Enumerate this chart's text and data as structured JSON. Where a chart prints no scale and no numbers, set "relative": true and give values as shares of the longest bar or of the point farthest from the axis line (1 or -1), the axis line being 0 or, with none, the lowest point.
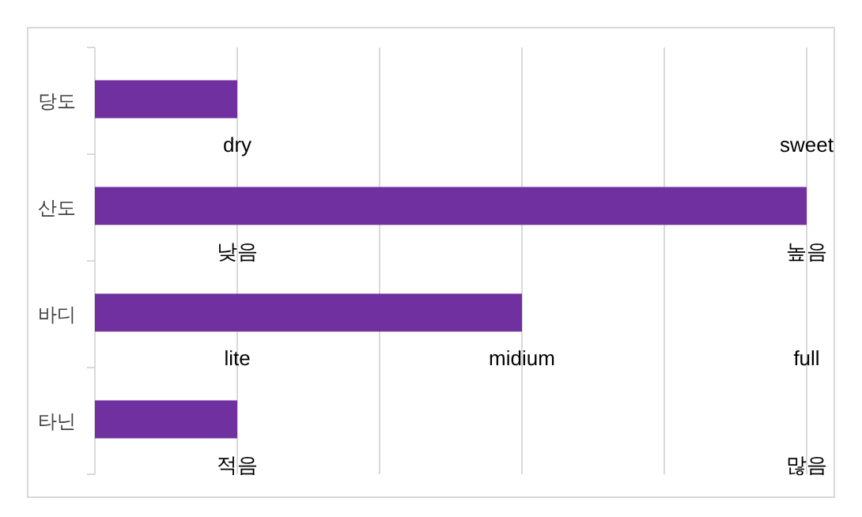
{
  "chart_data": {
    "type": "bar",
    "orientation": "horizontal",
    "relative": true,
    "categories": [
      "당도",
      "산도",
      "바디",
      "타닌"
    ],
    "values": [
      0.2,
      1,
      0.6,
      0.2
    ],
    "color": "#7030a0",
    "grid": "x",
    "annotations": [
      "dry",
      "sweet",
      "낮음",
      "높음",
      "lite",
      "midium",
      "full",
      "적음",
      "많음"
    ]
  }
}
